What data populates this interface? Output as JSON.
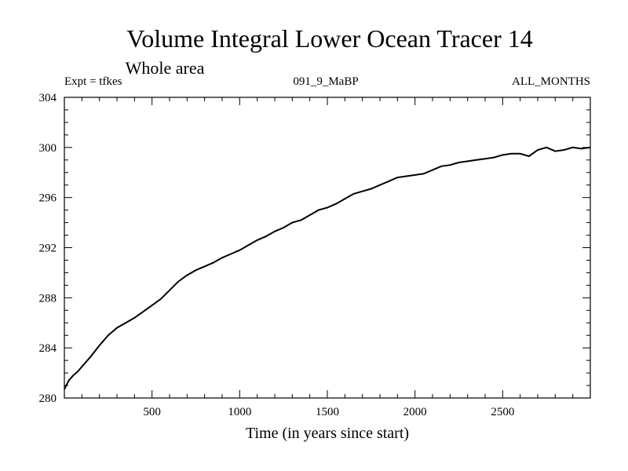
{
  "chart_data": {
    "type": "line",
    "title": "Volume Integral Lower Ocean Tracer 14",
    "subtitle": "Whole area",
    "expt_label": "Expt = tfkes",
    "run_label": "091_9_MaBP",
    "months_label": "ALL_MONTHS",
    "xlabel": "Time (in years since start)",
    "ylabel": "",
    "xlim": [
      0,
      3000
    ],
    "ylim": [
      280,
      304
    ],
    "x_ticks": [
      500,
      1000,
      1500,
      2000,
      2500
    ],
    "y_ticks": [
      280,
      284,
      288,
      292,
      296,
      300,
      304
    ],
    "grid": false,
    "line_color": "#000000",
    "series": [
      {
        "x": [
          0,
          25,
          50,
          75,
          100,
          150,
          200,
          250,
          300,
          350,
          400,
          450,
          500,
          550,
          600,
          650,
          700,
          750,
          800,
          850,
          900,
          950,
          1000,
          1050,
          1100,
          1150,
          1200,
          1250,
          1300,
          1350,
          1400,
          1450,
          1500,
          1550,
          1600,
          1650,
          1700,
          1750,
          1800,
          1850,
          1900,
          1950,
          2000,
          2050,
          2100,
          2150,
          2200,
          2250,
          2300,
          2350,
          2400,
          2450,
          2500,
          2550,
          2600,
          2650,
          2700,
          2750,
          2800,
          2850,
          2900,
          2950,
          3000
        ],
        "y": [
          280.7,
          281.4,
          281.8,
          282.1,
          282.5,
          283.3,
          284.2,
          285.0,
          285.6,
          286.0,
          286.4,
          286.9,
          287.4,
          287.9,
          288.6,
          289.3,
          289.8,
          290.2,
          290.5,
          290.8,
          291.2,
          291.5,
          291.8,
          292.2,
          292.6,
          292.9,
          293.3,
          293.6,
          294.0,
          294.2,
          294.6,
          295.0,
          295.2,
          295.5,
          295.9,
          296.3,
          296.5,
          296.7,
          297.0,
          297.3,
          297.6,
          297.7,
          297.8,
          297.9,
          298.2,
          298.5,
          298.6,
          298.8,
          298.9,
          299.0,
          299.1,
          299.2,
          299.4,
          299.5,
          299.5,
          299.3,
          299.8,
          300.0,
          299.7,
          299.8,
          300.0,
          299.9,
          300.0
        ]
      }
    ]
  }
}
